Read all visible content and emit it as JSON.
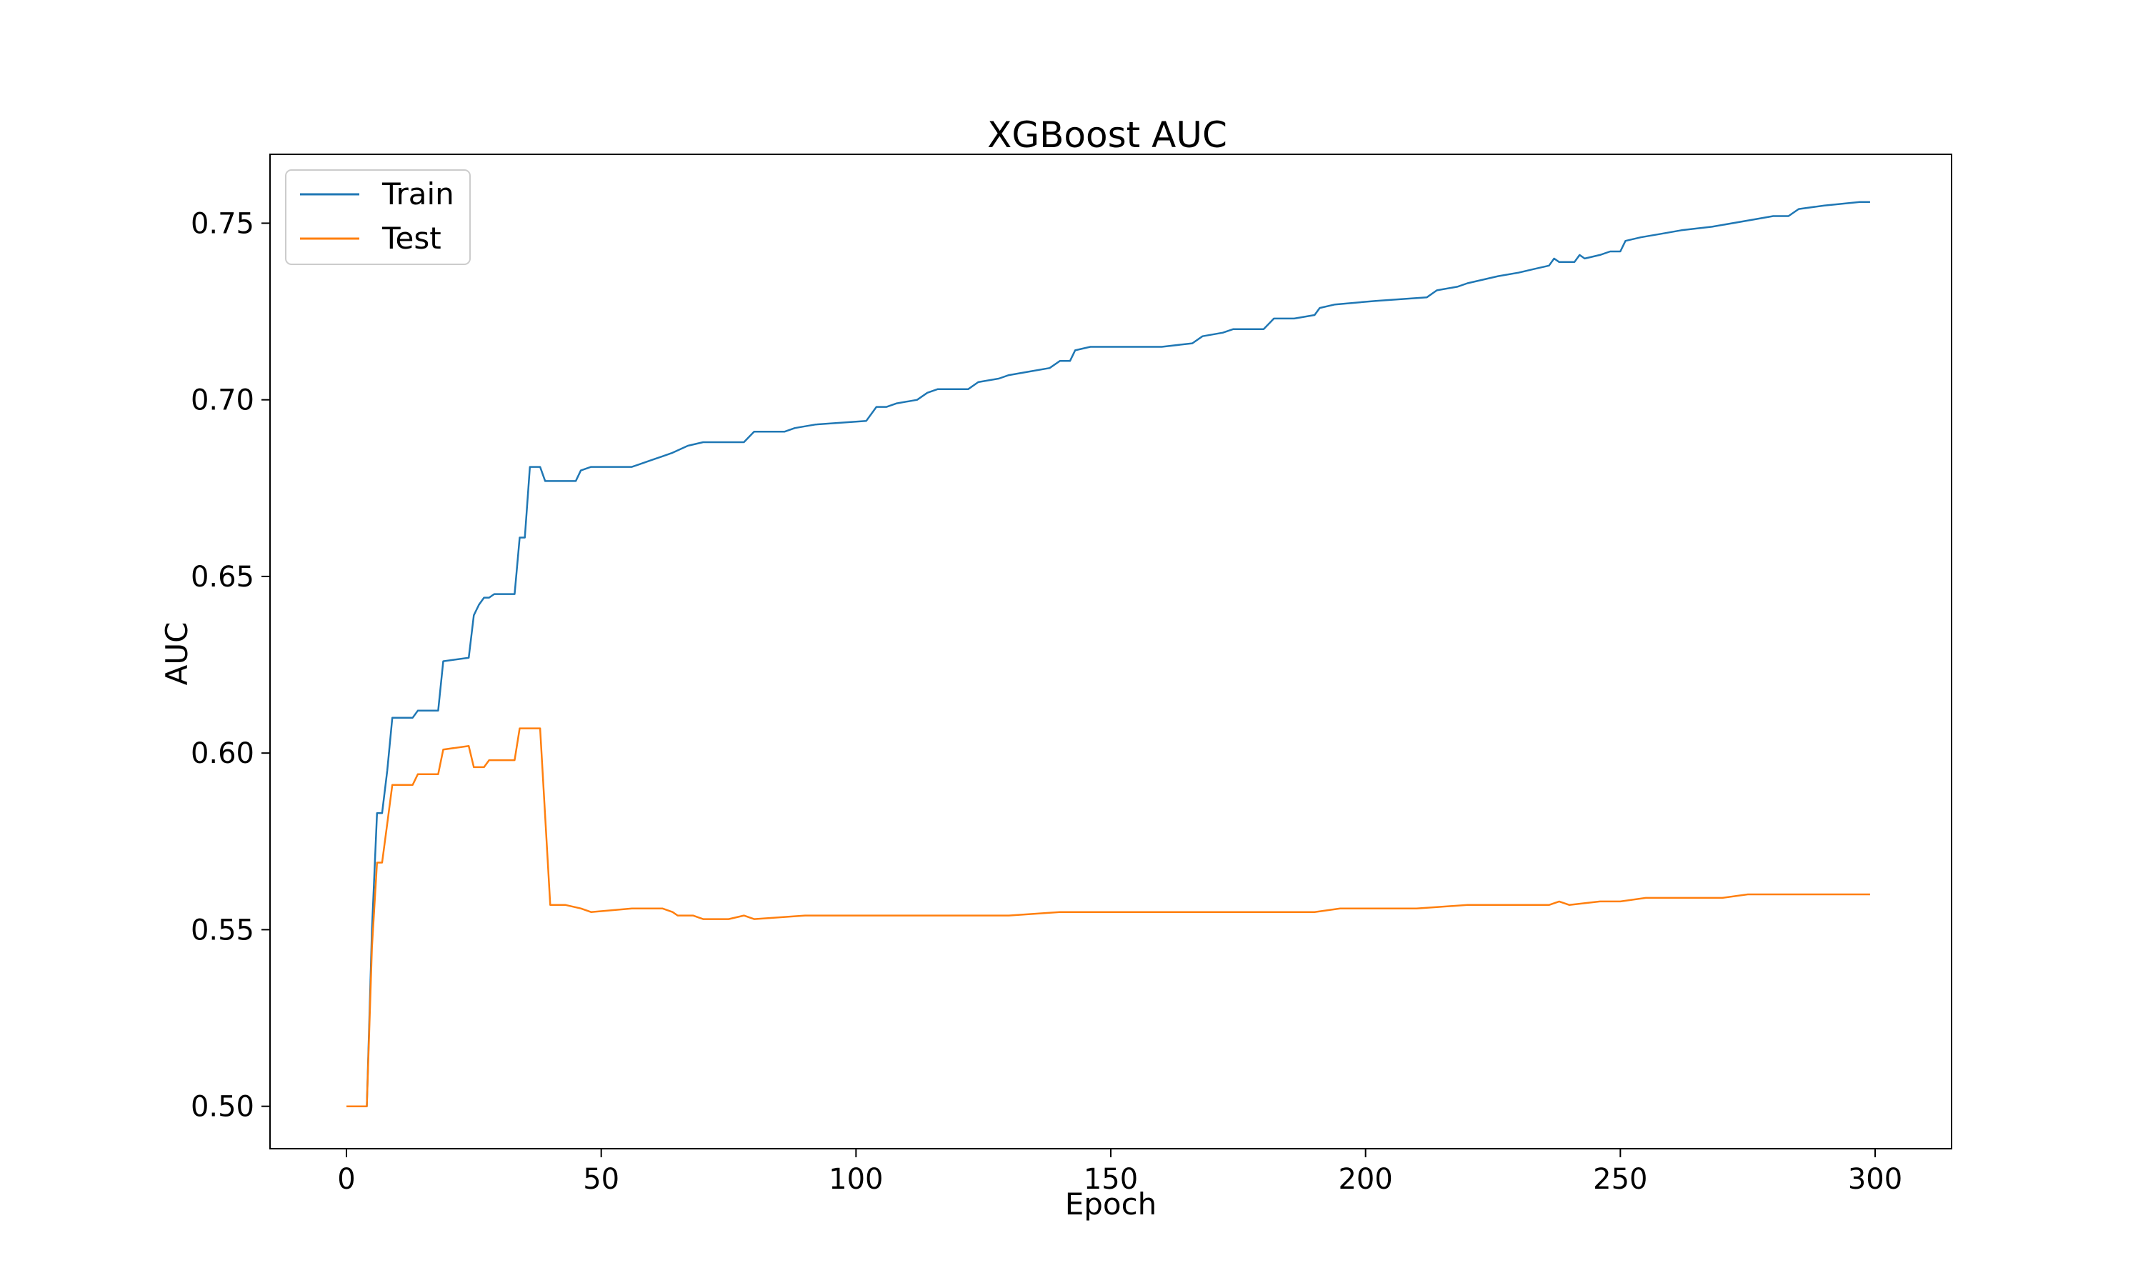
{
  "chart_data": {
    "type": "line",
    "title": "XGBoost AUC",
    "xlabel": "Epoch",
    "ylabel": "AUC",
    "xlim": [
      -15,
      315
    ],
    "ylim": [
      0.488,
      0.7695
    ],
    "xticks": [
      0,
      50,
      100,
      150,
      200,
      250,
      300
    ],
    "yticks": [
      0.5,
      0.55,
      0.6,
      0.65,
      0.7,
      0.75
    ],
    "grid": false,
    "legend_position": "top-left",
    "series": [
      {
        "name": "Train",
        "color": "#1f77b4",
        "points": [
          [
            0,
            0.5
          ],
          [
            4,
            0.5
          ],
          [
            5,
            0.55
          ],
          [
            6,
            0.583
          ],
          [
            7,
            0.583
          ],
          [
            8,
            0.595
          ],
          [
            9,
            0.61
          ],
          [
            13,
            0.61
          ],
          [
            14,
            0.612
          ],
          [
            18,
            0.612
          ],
          [
            19,
            0.626
          ],
          [
            24,
            0.627
          ],
          [
            25,
            0.639
          ],
          [
            26,
            0.642
          ],
          [
            27,
            0.644
          ],
          [
            28,
            0.644
          ],
          [
            29,
            0.645
          ],
          [
            33,
            0.645
          ],
          [
            34,
            0.661
          ],
          [
            35,
            0.661
          ],
          [
            36,
            0.681
          ],
          [
            38,
            0.681
          ],
          [
            39,
            0.677
          ],
          [
            45,
            0.677
          ],
          [
            46,
            0.68
          ],
          [
            48,
            0.681
          ],
          [
            56,
            0.681
          ],
          [
            58,
            0.682
          ],
          [
            60,
            0.683
          ],
          [
            62,
            0.684
          ],
          [
            64,
            0.685
          ],
          [
            67,
            0.687
          ],
          [
            70,
            0.688
          ],
          [
            78,
            0.688
          ],
          [
            80,
            0.691
          ],
          [
            86,
            0.691
          ],
          [
            88,
            0.692
          ],
          [
            92,
            0.693
          ],
          [
            102,
            0.694
          ],
          [
            104,
            0.698
          ],
          [
            106,
            0.698
          ],
          [
            108,
            0.699
          ],
          [
            112,
            0.7
          ],
          [
            114,
            0.702
          ],
          [
            116,
            0.703
          ],
          [
            122,
            0.703
          ],
          [
            124,
            0.705
          ],
          [
            128,
            0.706
          ],
          [
            130,
            0.707
          ],
          [
            134,
            0.708
          ],
          [
            138,
            0.709
          ],
          [
            140,
            0.711
          ],
          [
            142,
            0.711
          ],
          [
            143,
            0.714
          ],
          [
            146,
            0.715
          ],
          [
            160,
            0.715
          ],
          [
            166,
            0.716
          ],
          [
            168,
            0.718
          ],
          [
            172,
            0.719
          ],
          [
            174,
            0.72
          ],
          [
            180,
            0.72
          ],
          [
            182,
            0.723
          ],
          [
            186,
            0.723
          ],
          [
            190,
            0.724
          ],
          [
            191,
            0.726
          ],
          [
            194,
            0.727
          ],
          [
            202,
            0.728
          ],
          [
            212,
            0.729
          ],
          [
            214,
            0.731
          ],
          [
            218,
            0.732
          ],
          [
            220,
            0.733
          ],
          [
            226,
            0.735
          ],
          [
            230,
            0.736
          ],
          [
            233,
            0.737
          ],
          [
            236,
            0.738
          ],
          [
            237,
            0.74
          ],
          [
            238,
            0.739
          ],
          [
            241,
            0.739
          ],
          [
            242,
            0.741
          ],
          [
            243,
            0.74
          ],
          [
            246,
            0.741
          ],
          [
            248,
            0.742
          ],
          [
            250,
            0.742
          ],
          [
            251,
            0.745
          ],
          [
            254,
            0.746
          ],
          [
            258,
            0.747
          ],
          [
            262,
            0.748
          ],
          [
            268,
            0.749
          ],
          [
            276,
            0.751
          ],
          [
            280,
            0.752
          ],
          [
            283,
            0.752
          ],
          [
            285,
            0.754
          ],
          [
            290,
            0.755
          ],
          [
            297,
            0.756
          ],
          [
            299,
            0.756
          ]
        ]
      },
      {
        "name": "Test",
        "color": "#ff7f0e",
        "points": [
          [
            0,
            0.5
          ],
          [
            4,
            0.5
          ],
          [
            5,
            0.545
          ],
          [
            6,
            0.569
          ],
          [
            7,
            0.569
          ],
          [
            8,
            0.58
          ],
          [
            9,
            0.591
          ],
          [
            13,
            0.591
          ],
          [
            14,
            0.594
          ],
          [
            18,
            0.594
          ],
          [
            19,
            0.601
          ],
          [
            24,
            0.602
          ],
          [
            25,
            0.596
          ],
          [
            26,
            0.596
          ],
          [
            27,
            0.596
          ],
          [
            28,
            0.598
          ],
          [
            33,
            0.598
          ],
          [
            34,
            0.607
          ],
          [
            38,
            0.607
          ],
          [
            40,
            0.557
          ],
          [
            43,
            0.557
          ],
          [
            46,
            0.556
          ],
          [
            48,
            0.555
          ],
          [
            56,
            0.556
          ],
          [
            62,
            0.556
          ],
          [
            64,
            0.555
          ],
          [
            65,
            0.554
          ],
          [
            68,
            0.554
          ],
          [
            70,
            0.553
          ],
          [
            75,
            0.553
          ],
          [
            78,
            0.554
          ],
          [
            80,
            0.553
          ],
          [
            90,
            0.554
          ],
          [
            100,
            0.554
          ],
          [
            110,
            0.554
          ],
          [
            120,
            0.554
          ],
          [
            130,
            0.554
          ],
          [
            140,
            0.555
          ],
          [
            150,
            0.555
          ],
          [
            160,
            0.555
          ],
          [
            170,
            0.555
          ],
          [
            180,
            0.555
          ],
          [
            190,
            0.555
          ],
          [
            195,
            0.556
          ],
          [
            200,
            0.556
          ],
          [
            205,
            0.556
          ],
          [
            210,
            0.556
          ],
          [
            220,
            0.557
          ],
          [
            230,
            0.557
          ],
          [
            236,
            0.557
          ],
          [
            238,
            0.558
          ],
          [
            240,
            0.557
          ],
          [
            246,
            0.558
          ],
          [
            250,
            0.558
          ],
          [
            255,
            0.559
          ],
          [
            260,
            0.559
          ],
          [
            265,
            0.559
          ],
          [
            270,
            0.559
          ],
          [
            275,
            0.56
          ],
          [
            280,
            0.56
          ],
          [
            285,
            0.56
          ],
          [
            290,
            0.56
          ],
          [
            295,
            0.56
          ],
          [
            299,
            0.56
          ]
        ]
      }
    ]
  }
}
